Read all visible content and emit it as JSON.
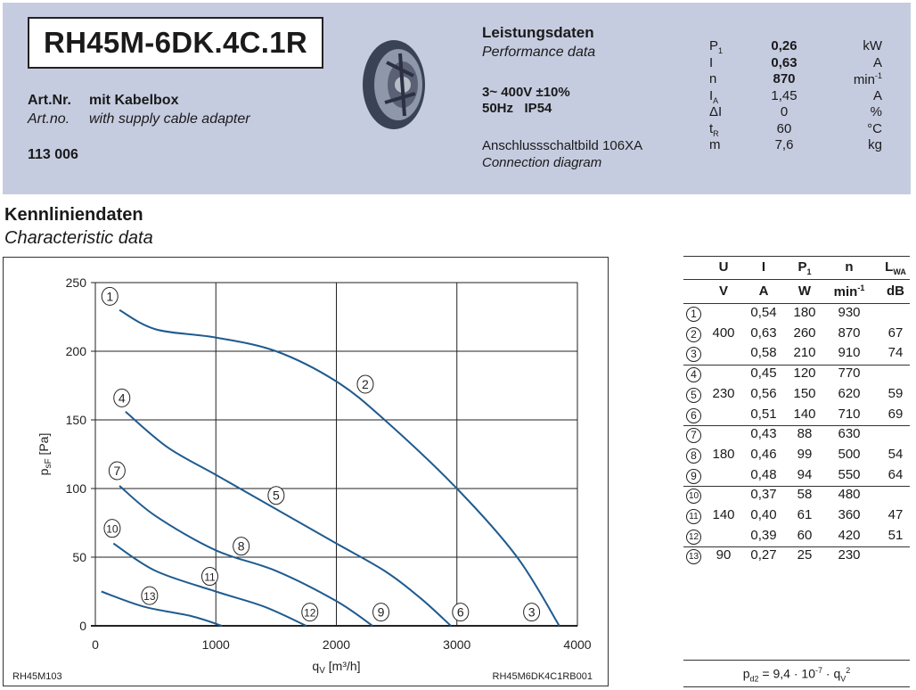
{
  "header": {
    "model": "RH45M-6DK.4C.1R",
    "artnr_label_de": "Art.Nr.",
    "artnr_desc_de": "mit Kabelbox",
    "artnr_label_en": "Art.no.",
    "artnr_desc_en": "with supply cable adapter",
    "artnr_value": "113 006",
    "product_image": "centrifugal-fan-impeller",
    "perf_title_de": "Leistungsdaten",
    "perf_title_en": "Performance data",
    "voltage": "3~ 400V ±10%",
    "freq_ip": "50Hz   IP54",
    "connection_de": "Anschlussschaltbild 106XA",
    "connection_en": "Connection diagram",
    "specs": [
      {
        "sym": "P",
        "sub": "1",
        "value": "0,26",
        "unit": "kW",
        "bold": true
      },
      {
        "sym": "I",
        "sub": "",
        "value": "0,63",
        "unit": "A",
        "bold": true
      },
      {
        "sym": "n",
        "sub": "",
        "value": "870",
        "unit": "min",
        "unit_sup": "-1",
        "bold": true
      },
      {
        "sym": "I",
        "sub": "A",
        "value": "1,45",
        "unit": "A",
        "bold": false
      },
      {
        "sym": "ΔI",
        "sub": "",
        "value": "0",
        "unit": "%",
        "bold": false
      },
      {
        "sym": "t",
        "sub": "R",
        "value": "60",
        "unit": "°C",
        "bold": false
      },
      {
        "sym": "m",
        "sub": "",
        "value": "7,6",
        "unit": "kg",
        "bold": false
      }
    ],
    "background_color": "#c6cce0"
  },
  "section": {
    "title_de": "Kennliniendaten",
    "title_en": "Characteristic data"
  },
  "chart_data": {
    "type": "line",
    "xlabel": "q",
    "xlabel_sub": "V",
    "xlabel_unit": " [m³/h]",
    "ylabel": "p",
    "ylabel_sub": "sF",
    "ylabel_unit": " [Pa]",
    "xlim": [
      0,
      4000
    ],
    "ylim": [
      0,
      250
    ],
    "xticks": [
      "0",
      "1000",
      "2000",
      "3000",
      "4000"
    ],
    "yticks": [
      "0",
      "50",
      "100",
      "150",
      "200",
      "250"
    ],
    "grid": true,
    "line_color": "#1f5b8f",
    "footer_left": "RH45M103",
    "footer_right": "RH45M6DK4C1RB001",
    "series": [
      {
        "points": [
          [
            200,
            230
          ],
          [
            500,
            216
          ],
          [
            1000,
            210
          ],
          [
            1500,
            200
          ],
          [
            2000,
            178
          ],
          [
            2400,
            150
          ],
          [
            3000,
            100
          ],
          [
            3500,
            50
          ],
          [
            3850,
            0
          ]
        ]
      },
      {
        "points": [
          [
            250,
            156
          ],
          [
            600,
            130
          ],
          [
            1000,
            110
          ],
          [
            1500,
            85
          ],
          [
            2000,
            60
          ],
          [
            2400,
            40
          ],
          [
            2700,
            20
          ],
          [
            2950,
            0
          ]
        ]
      },
      {
        "points": [
          [
            200,
            102
          ],
          [
            500,
            80
          ],
          [
            1000,
            55
          ],
          [
            1500,
            40
          ],
          [
            2000,
            18
          ],
          [
            2300,
            0
          ]
        ]
      },
      {
        "points": [
          [
            150,
            60
          ],
          [
            500,
            40
          ],
          [
            1000,
            25
          ],
          [
            1400,
            14
          ],
          [
            1750,
            0
          ]
        ]
      },
      {
        "points": [
          [
            50,
            25
          ],
          [
            400,
            14
          ],
          [
            800,
            7
          ],
          [
            1050,
            0
          ]
        ]
      }
    ],
    "annotations": [
      {
        "text": "1",
        "x": 120,
        "y": 240
      },
      {
        "text": "2",
        "x": 2240,
        "y": 176
      },
      {
        "text": "3",
        "x": 3620,
        "y": 10
      },
      {
        "text": "4",
        "x": 220,
        "y": 166
      },
      {
        "text": "5",
        "x": 1500,
        "y": 95
      },
      {
        "text": "6",
        "x": 3030,
        "y": 10
      },
      {
        "text": "7",
        "x": 180,
        "y": 113
      },
      {
        "text": "8",
        "x": 1210,
        "y": 58
      },
      {
        "text": "9",
        "x": 2370,
        "y": 10
      },
      {
        "text": "10",
        "x": 140,
        "y": 71
      },
      {
        "text": "11",
        "x": 950,
        "y": 36
      },
      {
        "text": "12",
        "x": 1780,
        "y": 10
      },
      {
        "text": "13",
        "x": 450,
        "y": 22
      }
    ]
  },
  "table": {
    "headers": [
      {
        "text": "U",
        "sub": ""
      },
      {
        "text": "I",
        "sub": ""
      },
      {
        "text": "P",
        "sub": "1"
      },
      {
        "text": "n",
        "sub": ""
      },
      {
        "text": "L",
        "sub": "WA"
      }
    ],
    "units": [
      {
        "text": "V",
        "sup": ""
      },
      {
        "text": "A",
        "sup": ""
      },
      {
        "text": "W",
        "sup": ""
      },
      {
        "text": "min",
        "sup": "-1"
      },
      {
        "text": "dB",
        "sup": ""
      }
    ],
    "groups": [
      {
        "U": "400",
        "rows": [
          {
            "id": "1",
            "I": "0,54",
            "P1": "180",
            "n": "930",
            "LWA": ""
          },
          {
            "id": "2",
            "I": "0,63",
            "P1": "260",
            "n": "870",
            "LWA": "67"
          },
          {
            "id": "3",
            "I": "0,58",
            "P1": "210",
            "n": "910",
            "LWA": "74"
          }
        ]
      },
      {
        "U": "230",
        "rows": [
          {
            "id": "4",
            "I": "0,45",
            "P1": "120",
            "n": "770",
            "LWA": ""
          },
          {
            "id": "5",
            "I": "0,56",
            "P1": "150",
            "n": "620",
            "LWA": "59"
          },
          {
            "id": "6",
            "I": "0,51",
            "P1": "140",
            "n": "710",
            "LWA": "69"
          }
        ]
      },
      {
        "U": "180",
        "rows": [
          {
            "id": "7",
            "I": "0,43",
            "P1": "88",
            "n": "630",
            "LWA": ""
          },
          {
            "id": "8",
            "I": "0,46",
            "P1": "99",
            "n": "500",
            "LWA": "54"
          },
          {
            "id": "9",
            "I": "0,48",
            "P1": "94",
            "n": "550",
            "LWA": "64"
          }
        ]
      },
      {
        "U": "140",
        "rows": [
          {
            "id": "10",
            "I": "0,37",
            "P1": "58",
            "n": "480",
            "LWA": ""
          },
          {
            "id": "11",
            "I": "0,40",
            "P1": "61",
            "n": "360",
            "LWA": "47"
          },
          {
            "id": "12",
            "I": "0,39",
            "P1": "60",
            "n": "420",
            "LWA": "51"
          }
        ]
      },
      {
        "U": "90",
        "rows": [
          {
            "id": "13",
            "I": "0,27",
            "P1": "25",
            "n": "230",
            "LWA": ""
          }
        ]
      }
    ],
    "formula": {
      "lhs": "p",
      "lhs_sub": "d2",
      "mid": " = 9,4 · 10",
      "exp": "-7",
      "rhs": " · q",
      "rhs_sub": "V",
      "rhs_sup": "2"
    }
  }
}
